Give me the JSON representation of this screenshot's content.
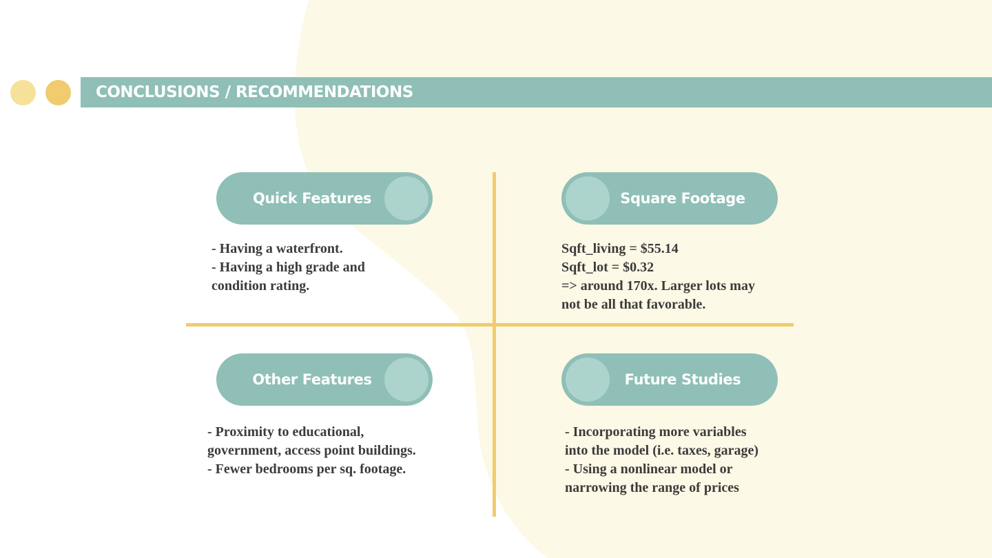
{
  "colors": {
    "teal": "#8fbfb7",
    "teal_light": "#acd3cc",
    "gold": "#f0cc6e",
    "yellow_light": "#f6e19b",
    "cream": "#fcf9e6",
    "text": "#3b3b3b"
  },
  "header": {
    "title": "CONCLUSIONS / RECOMMENDATIONS"
  },
  "sections": [
    {
      "heading": "Quick Features",
      "lines": [
        "- Having a waterfront.",
        "- Having a high grade and",
        "condition rating."
      ]
    },
    {
      "heading": "Square Footage",
      "lines": [
        "Sqft_living = $55.14",
        "Sqft_lot = $0.32",
        "=> around  170x. Larger lots may",
        "not be all that favorable."
      ]
    },
    {
      "heading": "Other Features",
      "lines": [
        "- Proximity to educational,",
        "government, access point buildings.",
        "- Fewer bedrooms per sq. footage."
      ]
    },
    {
      "heading": "Future Studies",
      "lines": [
        "- Incorporating more variables",
        "into the model (i.e. taxes, garage)",
        "- Using a nonlinear model or",
        "narrowing the range of prices"
      ]
    }
  ]
}
